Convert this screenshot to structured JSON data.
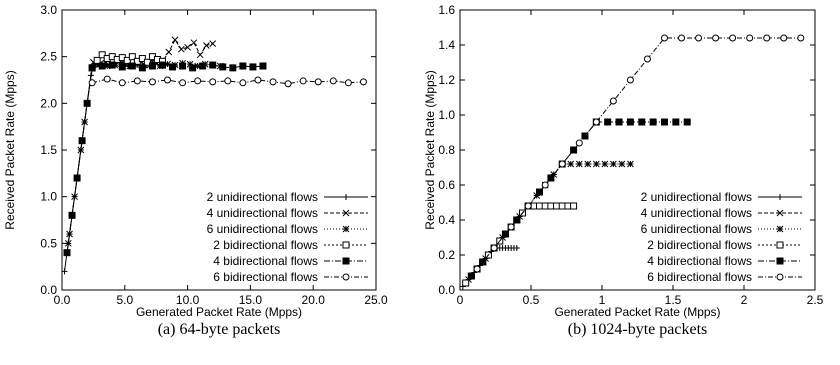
{
  "chart_data": [
    {
      "type": "line",
      "caption": "(a)  64-byte packets",
      "xlabel": "Generated Packet Rate (Mpps)",
      "ylabel": "Received Packet Rate (Mpps)",
      "xlim": [
        0,
        25
      ],
      "ylim": [
        0,
        3
      ],
      "xticks": [
        "0.0",
        "5.0",
        "10.0",
        "15.0",
        "20.0",
        "25.0"
      ],
      "yticks": [
        "0.0",
        "0.5",
        "1.0",
        "1.5",
        "2.0",
        "2.5",
        "3.0"
      ],
      "legend_position": "bottom-right",
      "series": [
        {
          "name": "2 unidirectional flows",
          "marker": "plus",
          "dash": "none",
          "x": [
            0.2,
            0.5,
            0.8,
            1.0,
            1.2,
            1.5,
            1.8,
            2.0,
            2.3,
            2.5,
            2.8,
            3.1,
            3.5,
            4.0
          ],
          "y": [
            0.2,
            0.5,
            0.8,
            1.0,
            1.2,
            1.5,
            1.8,
            2.0,
            2.3,
            2.4,
            2.42,
            2.4,
            2.42,
            2.41
          ]
        },
        {
          "name": "4 unidirectional flows",
          "marker": "x",
          "dash": "4,2",
          "x": [
            0.5,
            1.0,
            1.5,
            2.0,
            2.5,
            3.0,
            3.5,
            4.0,
            4.5,
            5.0,
            5.5,
            6.0,
            6.5,
            7.0,
            7.5,
            8.0,
            8.5,
            9.0,
            9.5,
            10.0,
            10.5,
            11.0,
            11.5,
            12.0
          ],
          "y": [
            0.5,
            1.0,
            1.5,
            2.0,
            2.44,
            2.42,
            2.43,
            2.41,
            2.44,
            2.42,
            2.4,
            2.43,
            2.41,
            2.44,
            2.43,
            2.45,
            2.55,
            2.68,
            2.58,
            2.6,
            2.65,
            2.52,
            2.62,
            2.64
          ]
        },
        {
          "name": "6 unidirectional flows",
          "marker": "star",
          "dash": "1,2",
          "x": [
            0.6,
            1.2,
            1.8,
            2.4,
            3.0,
            3.6,
            4.2,
            4.8,
            5.4,
            6.0,
            6.6,
            7.2,
            7.8,
            8.4,
            9.0,
            9.6,
            10.2,
            10.8,
            11.4,
            12.0,
            12.6
          ],
          "y": [
            0.6,
            1.2,
            1.8,
            2.38,
            2.42,
            2.4,
            2.41,
            2.43,
            2.4,
            2.42,
            2.41,
            2.43,
            2.4,
            2.42,
            2.41,
            2.43,
            2.42,
            2.4,
            2.42,
            2.41,
            2.4
          ]
        },
        {
          "name": "2 bidirectional flows",
          "marker": "square-open",
          "dash": "2,2",
          "x": [
            2.4,
            2.8,
            3.2,
            3.6,
            4.0,
            4.4,
            4.8,
            5.2,
            5.6,
            6.0,
            6.4,
            6.8,
            7.2,
            7.6,
            8.0
          ],
          "y": [
            2.38,
            2.46,
            2.52,
            2.48,
            2.5,
            2.47,
            2.49,
            2.46,
            2.5,
            2.45,
            2.48,
            2.44,
            2.5,
            2.47,
            2.45
          ]
        },
        {
          "name": "4 bidirectional flows",
          "marker": "square-filled",
          "dash": "6,2,1,2",
          "x": [
            0.4,
            0.8,
            1.2,
            1.6,
            2.0,
            2.4,
            3.2,
            4.0,
            4.8,
            5.6,
            6.4,
            7.2,
            8.0,
            8.8,
            9.6,
            10.4,
            11.2,
            12.0,
            12.8,
            13.6,
            14.4,
            15.2,
            16.0
          ],
          "y": [
            0.4,
            0.8,
            1.2,
            1.6,
            2.0,
            2.38,
            2.4,
            2.41,
            2.39,
            2.4,
            2.38,
            2.4,
            2.41,
            2.39,
            2.4,
            2.38,
            2.4,
            2.41,
            2.39,
            2.38,
            2.4,
            2.39,
            2.4
          ]
        },
        {
          "name": "6 bidirectional flows",
          "marker": "circle-open",
          "dash": "5,2,1,2",
          "x": [
            2.4,
            3.6,
            4.8,
            6.0,
            7.2,
            8.4,
            9.6,
            10.8,
            12.0,
            13.2,
            14.4,
            15.6,
            16.8,
            18.0,
            19.2,
            20.4,
            21.6,
            22.8,
            24.0
          ],
          "y": [
            2.22,
            2.26,
            2.22,
            2.24,
            2.23,
            2.25,
            2.22,
            2.24,
            2.23,
            2.24,
            2.22,
            2.25,
            2.23,
            2.21,
            2.24,
            2.23,
            2.24,
            2.22,
            2.23
          ]
        }
      ]
    },
    {
      "type": "line",
      "caption": "(b)  1024-byte packets",
      "xlabel": "Generated Packet Rate (Mpps)",
      "ylabel": "Received Packet Rate (Mpps)",
      "xlim": [
        0,
        2.5
      ],
      "ylim": [
        0,
        1.6
      ],
      "xticks": [
        "0",
        "0.5",
        "1",
        "1.5",
        "2",
        "2.5"
      ],
      "yticks": [
        "0.0",
        "0.2",
        "0.4",
        "0.6",
        "0.8",
        "1.0",
        "1.2",
        "1.4",
        "1.6"
      ],
      "legend_position": "bottom-right",
      "series": [
        {
          "name": "2 unidirectional flows",
          "marker": "plus",
          "dash": "none",
          "x": [
            0.02,
            0.04,
            0.06,
            0.08,
            0.1,
            0.12,
            0.14,
            0.16,
            0.18,
            0.2,
            0.22,
            0.24,
            0.26,
            0.28,
            0.3,
            0.32,
            0.34,
            0.36,
            0.38,
            0.4
          ],
          "y": [
            0.02,
            0.04,
            0.06,
            0.08,
            0.1,
            0.12,
            0.14,
            0.16,
            0.18,
            0.2,
            0.22,
            0.24,
            0.24,
            0.24,
            0.24,
            0.24,
            0.24,
            0.24,
            0.24,
            0.24
          ]
        },
        {
          "name": "4 unidirectional flows",
          "marker": "x",
          "dash": "4,2",
          "x": [
            0.04,
            0.08,
            0.12,
            0.16,
            0.2,
            0.24,
            0.28,
            0.32,
            0.36,
            0.4,
            0.44,
            0.48,
            0.52,
            0.56,
            0.6,
            0.64,
            0.68,
            0.72,
            0.76,
            0.8
          ],
          "y": [
            0.04,
            0.08,
            0.12,
            0.16,
            0.2,
            0.24,
            0.28,
            0.32,
            0.36,
            0.4,
            0.44,
            0.48,
            0.48,
            0.48,
            0.48,
            0.48,
            0.48,
            0.48,
            0.48,
            0.48
          ]
        },
        {
          "name": "6 unidirectional flows",
          "marker": "star",
          "dash": "1,2",
          "x": [
            0.06,
            0.12,
            0.18,
            0.24,
            0.3,
            0.36,
            0.42,
            0.48,
            0.54,
            0.6,
            0.66,
            0.72,
            0.78,
            0.84,
            0.9,
            0.96,
            1.02,
            1.08,
            1.14,
            1.2
          ],
          "y": [
            0.06,
            0.12,
            0.18,
            0.24,
            0.3,
            0.36,
            0.42,
            0.48,
            0.54,
            0.6,
            0.66,
            0.72,
            0.72,
            0.72,
            0.72,
            0.72,
            0.72,
            0.72,
            0.72,
            0.72
          ]
        },
        {
          "name": "2 bidirectional flows",
          "marker": "square-open",
          "dash": "2,2",
          "x": [
            0.04,
            0.08,
            0.12,
            0.16,
            0.2,
            0.24,
            0.28,
            0.32,
            0.36,
            0.4,
            0.44,
            0.48,
            0.52,
            0.56,
            0.6,
            0.64,
            0.68,
            0.72,
            0.76,
            0.8
          ],
          "y": [
            0.04,
            0.08,
            0.12,
            0.16,
            0.2,
            0.24,
            0.28,
            0.32,
            0.36,
            0.4,
            0.44,
            0.48,
            0.48,
            0.48,
            0.48,
            0.48,
            0.48,
            0.48,
            0.48,
            0.48
          ]
        },
        {
          "name": "4 bidirectional flows",
          "marker": "square-filled",
          "dash": "6,2,1,2",
          "x": [
            0.08,
            0.16,
            0.24,
            0.32,
            0.4,
            0.48,
            0.56,
            0.64,
            0.72,
            0.8,
            0.88,
            0.96,
            1.04,
            1.12,
            1.2,
            1.28,
            1.36,
            1.44,
            1.52,
            1.6
          ],
          "y": [
            0.08,
            0.16,
            0.24,
            0.32,
            0.4,
            0.48,
            0.56,
            0.64,
            0.72,
            0.8,
            0.88,
            0.96,
            0.96,
            0.96,
            0.96,
            0.96,
            0.96,
            0.96,
            0.96,
            0.96
          ]
        },
        {
          "name": "6 bidirectional flows",
          "marker": "circle-open",
          "dash": "5,2,1,2",
          "x": [
            0.12,
            0.24,
            0.36,
            0.48,
            0.6,
            0.72,
            0.84,
            0.96,
            1.08,
            1.2,
            1.32,
            1.44,
            1.56,
            1.68,
            1.8,
            1.92,
            2.04,
            2.16,
            2.28,
            2.4
          ],
          "y": [
            0.12,
            0.24,
            0.36,
            0.48,
            0.6,
            0.72,
            0.84,
            0.96,
            1.08,
            1.2,
            1.32,
            1.44,
            1.44,
            1.44,
            1.44,
            1.44,
            1.44,
            1.44,
            1.44,
            1.44
          ]
        }
      ]
    }
  ]
}
